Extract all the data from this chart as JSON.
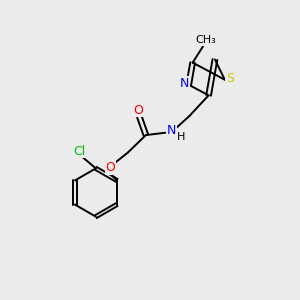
{
  "background_color": "#ebebeb",
  "bond_color": "#000000",
  "atom_colors": {
    "O": "#ff0000",
    "N": "#0000ff",
    "S": "#cccc00",
    "Cl": "#00bb00",
    "C": "#000000",
    "H": "#000000"
  },
  "figsize": [
    3.0,
    3.0
  ],
  "dpi": 100,
  "lw": 1.4,
  "fs": 8.5
}
